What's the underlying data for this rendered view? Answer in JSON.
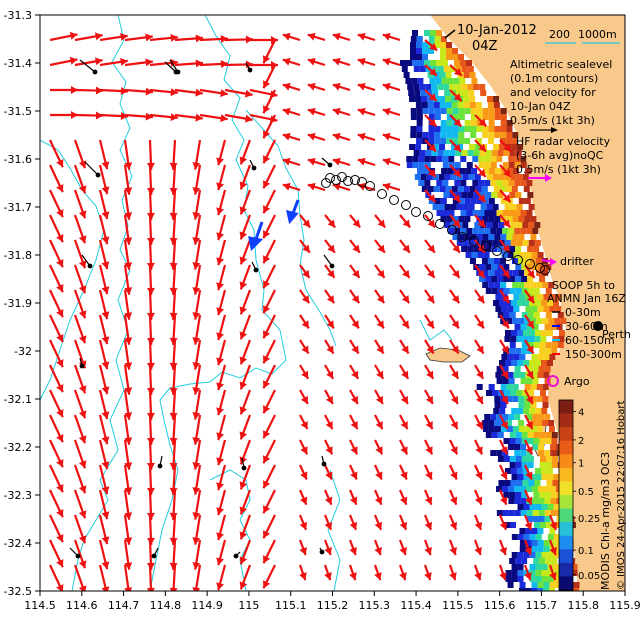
{
  "map": {
    "lon_range": [
      114.5,
      115.9
    ],
    "lat_range": [
      -32.5,
      -31.3
    ],
    "x_ticks": [
      "114.5",
      "114.6",
      "114.7",
      "114.8",
      "114.9",
      "115",
      "115.1",
      "115.2",
      "115.3",
      "115.4",
      "115.5",
      "115.6",
      "115.7",
      "115.8",
      "115.9"
    ],
    "x_tick_values": [
      114.5,
      114.6,
      114.7,
      114.8,
      114.9,
      115.0,
      115.1,
      115.2,
      115.3,
      115.4,
      115.5,
      115.6,
      115.7,
      115.8,
      115.9
    ],
    "y_ticks": [
      "-31.3",
      "-31.4",
      "-31.5",
      "-31.6",
      "-31.7",
      "-31.8",
      "-31.9",
      "-32",
      "-32.1",
      "-32.2",
      "-32.3",
      "-32.4",
      "-32.5"
    ],
    "y_tick_values": [
      -31.3,
      -31.4,
      -31.5,
      -31.6,
      -31.7,
      -31.8,
      -31.9,
      -32.0,
      -32.1,
      -32.2,
      -32.3,
      -32.4,
      -32.5
    ]
  },
  "header": {
    "date": "10-Jan-2012",
    "time": "04Z",
    "contour_200": "200",
    "contour_1000": "1000m"
  },
  "legend": {
    "altimetric_lines": [
      "Altimetric sealevel",
      "(0.1m contours)",
      "and velocity for",
      "10-Jan 04Z",
      "0.5m/s (1kt 3h)"
    ],
    "hf_lines": [
      "HF radar velocity",
      "(3-6h avg)noQC",
      "0.5m/s (1kt 3h)"
    ],
    "drifter": "drifter",
    "soop_lines": [
      "SOOP 5h to",
      "ANMN Jan 16Z"
    ],
    "depth_items": [
      "0-30m",
      "30-60m",
      "60-150m",
      "150-300m"
    ],
    "depth_colors": [
      "#000000",
      "#0000ff",
      "#00ccff",
      "#ff0000"
    ],
    "perth": "Perth",
    "argo": "Argo"
  },
  "colorbar": {
    "ticks": [
      "4",
      "2",
      "1",
      "0.5",
      "0.25",
      "0.1",
      "0.05"
    ],
    "label": "MODIS Chl-a mg/m3 OC3"
  },
  "credit": "© IMOS 24-Apr-2015 22:07:16 Hobart",
  "colors": {
    "land": "#f9c98b",
    "arrow": "#ee1111",
    "contour": "#22ccdd",
    "hf_arrow": "#ff00ff",
    "argo": "#ee11cc"
  }
}
